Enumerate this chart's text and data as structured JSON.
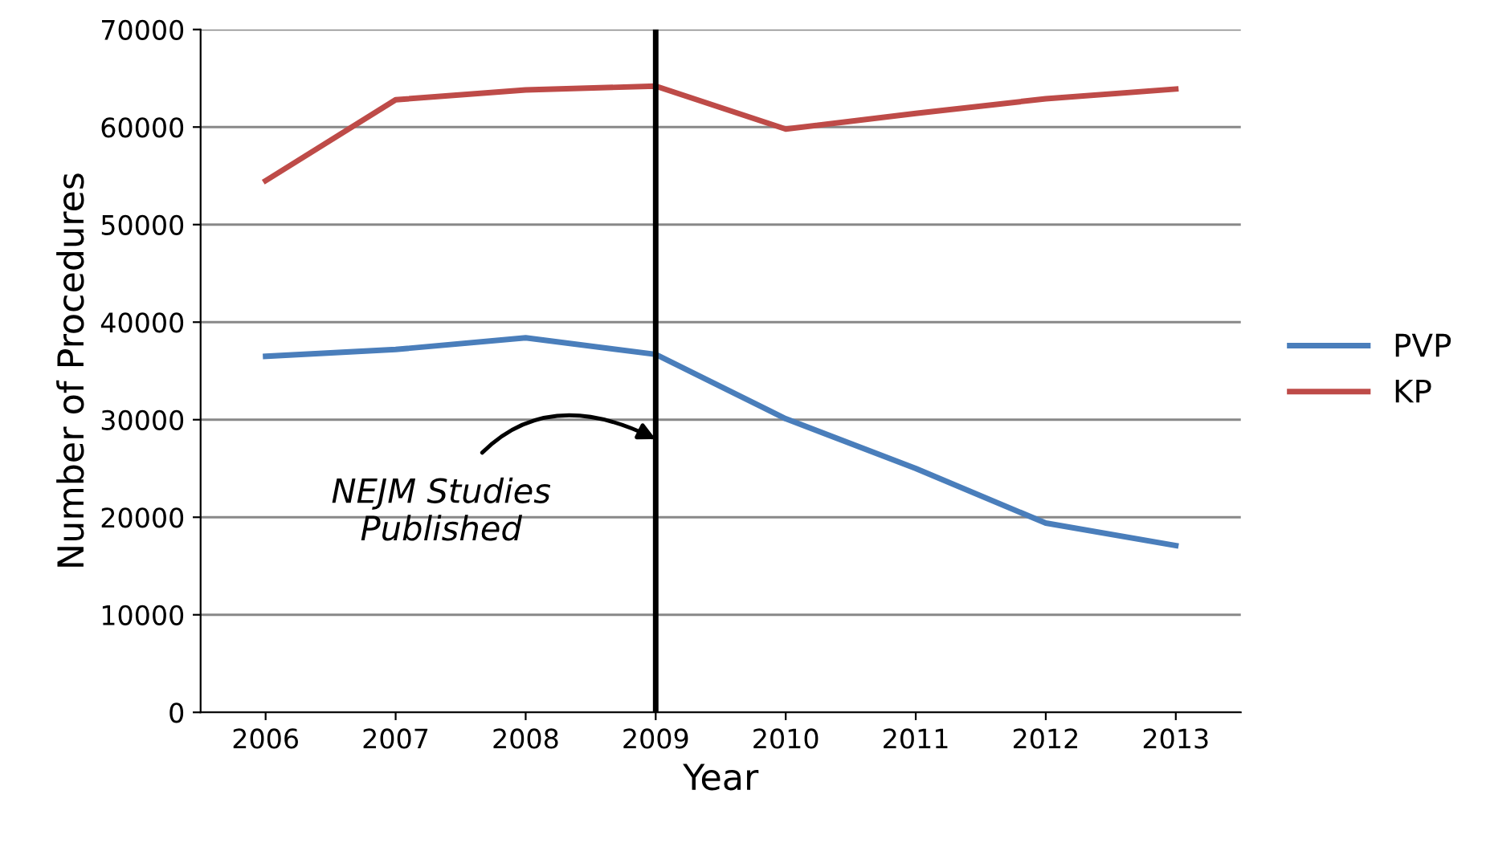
{
  "chart_data": {
    "type": "line",
    "xlabel": "Year",
    "ylabel": "Number of Procedures",
    "categories": [
      "2006",
      "2007",
      "2008",
      "2009",
      "2010",
      "2011",
      "2012",
      "2013"
    ],
    "series": [
      {
        "name": "PVP",
        "color": "#4a7ebb",
        "values": [
          36500,
          37200,
          38400,
          36700,
          30100,
          25000,
          19400,
          17100
        ]
      },
      {
        "name": "KP",
        "color": "#be4b48",
        "values": [
          54500,
          62800,
          63800,
          64200,
          59800,
          61400,
          62900,
          63900
        ]
      }
    ],
    "ylim": [
      0,
      70000
    ],
    "yticks": [
      0,
      10000,
      20000,
      30000,
      40000,
      50000,
      60000,
      70000
    ],
    "grid": "y",
    "legend": "right",
    "marker": "none",
    "line_style": "solid",
    "ref_lines": [
      {
        "axis": "x",
        "value": "2009",
        "color": "#000000",
        "line_style": "solid"
      }
    ],
    "annotations": [
      {
        "text": "NEJM Studies\nPublished",
        "x": "2009",
        "y": 28000
      }
    ]
  }
}
